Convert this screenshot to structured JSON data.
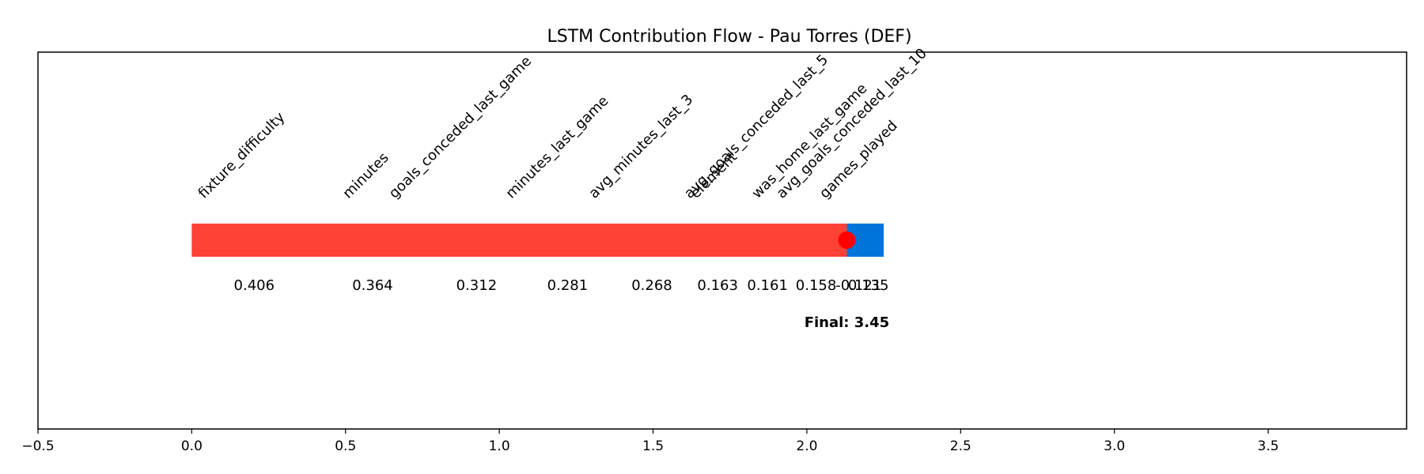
{
  "chart_data": {
    "type": "bar",
    "title": "LSTM Contribution Flow - Pau Torres (DEF)",
    "xlabel": "",
    "ylabel": "",
    "xlim": [
      -0.5,
      3.95
    ],
    "x_ticks": [
      -0.5,
      0.0,
      0.5,
      1.0,
      1.5,
      2.0,
      2.5,
      3.0,
      3.5
    ],
    "x_tick_labels": [
      "−0.5",
      "0.0",
      "0.5",
      "1.0",
      "1.5",
      "2.0",
      "2.5",
      "3.0",
      "3.5"
    ],
    "grid": false,
    "segments": [
      {
        "start": 0.0,
        "end": 2.13,
        "color": "#ff4136"
      },
      {
        "start": 2.13,
        "end": 2.25,
        "color": "#0074d9"
      }
    ],
    "marker": {
      "x": 2.13,
      "color": "#ff0000"
    },
    "features": [
      {
        "name": "fixture_difficulty",
        "label_x": 0.04,
        "value": "0.406",
        "value_x": 0.203
      },
      {
        "name": "minutes",
        "label_x": 0.51,
        "value": "0.364",
        "value_x": 0.588
      },
      {
        "name": "goals_conceded_last_game",
        "label_x": 0.66,
        "value": "0.312",
        "value_x": 0.926
      },
      {
        "name": "minutes_last_game",
        "label_x": 1.04,
        "value": "0.281",
        "value_x": 1.222
      },
      {
        "name": "avg_minutes_last_3",
        "label_x": 1.31,
        "value": "0.268",
        "value_x": 1.496
      },
      {
        "name": "avg_goals_conceded_last_5",
        "label_x": 1.62,
        "value": "0.163",
        "value_x": 1.71
      },
      {
        "name": "element",
        "label_x": 1.64,
        "value": "0.161",
        "value_x": 1.872
      },
      {
        "name": "was_home_last_game",
        "label_x": 1.84,
        "value": "0.158",
        "value_x": 2.03
      },
      {
        "name": "avg_goals_conceded_last_10",
        "label_x": 1.92,
        "value": "-0.121",
        "value_x": 2.168
      },
      {
        "name": "games_played",
        "label_x": 2.06,
        "value": "0.135",
        "value_x": 2.2
      }
    ],
    "final_label": "Final: 3.45",
    "final_x": 2.13
  }
}
